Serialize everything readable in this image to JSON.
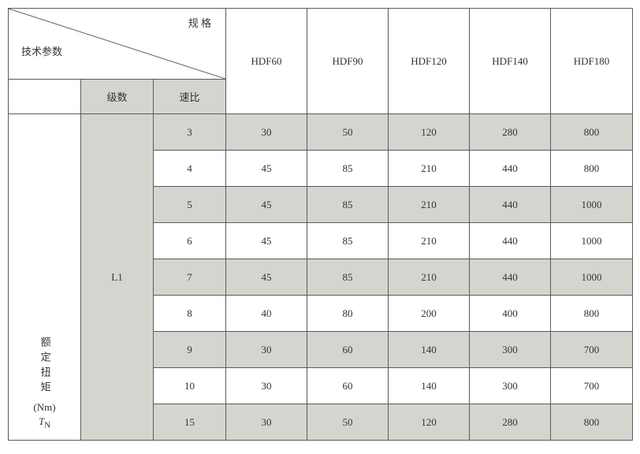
{
  "header": {
    "diag_top": "规 格",
    "diag_bottom": "技术参数",
    "stage_label": "级数",
    "ratio_label": "速比",
    "models": [
      "HDF60",
      "HDF90",
      "HDF120",
      "HDF140",
      "HDF180"
    ]
  },
  "side": {
    "param_vert": "额定扭矩",
    "param_unit": "(Nm)",
    "param_symbol": "T",
    "param_subscript": "N",
    "stage": "L1"
  },
  "rows": [
    {
      "ratio": "3",
      "vals": [
        "30",
        "50",
        "120",
        "280",
        "800"
      ],
      "shade": true
    },
    {
      "ratio": "4",
      "vals": [
        "45",
        "85",
        "210",
        "440",
        "800"
      ],
      "shade": false
    },
    {
      "ratio": "5",
      "vals": [
        "45",
        "85",
        "210",
        "440",
        "1000"
      ],
      "shade": true
    },
    {
      "ratio": "6",
      "vals": [
        "45",
        "85",
        "210",
        "440",
        "1000"
      ],
      "shade": false
    },
    {
      "ratio": "7",
      "vals": [
        "45",
        "85",
        "210",
        "440",
        "1000"
      ],
      "shade": true
    },
    {
      "ratio": "8",
      "vals": [
        "40",
        "80",
        "200",
        "400",
        "800"
      ],
      "shade": false
    },
    {
      "ratio": "9",
      "vals": [
        "30",
        "60",
        "140",
        "300",
        "700"
      ],
      "shade": true
    },
    {
      "ratio": "10",
      "vals": [
        "30",
        "60",
        "140",
        "300",
        "700"
      ],
      "shade": false
    },
    {
      "ratio": "15",
      "vals": [
        "30",
        "50",
        "120",
        "280",
        "800"
      ],
      "shade": true
    }
  ],
  "style": {
    "gray": "#d5d5d0",
    "border": "#5a5a5a",
    "text": "#333333"
  }
}
